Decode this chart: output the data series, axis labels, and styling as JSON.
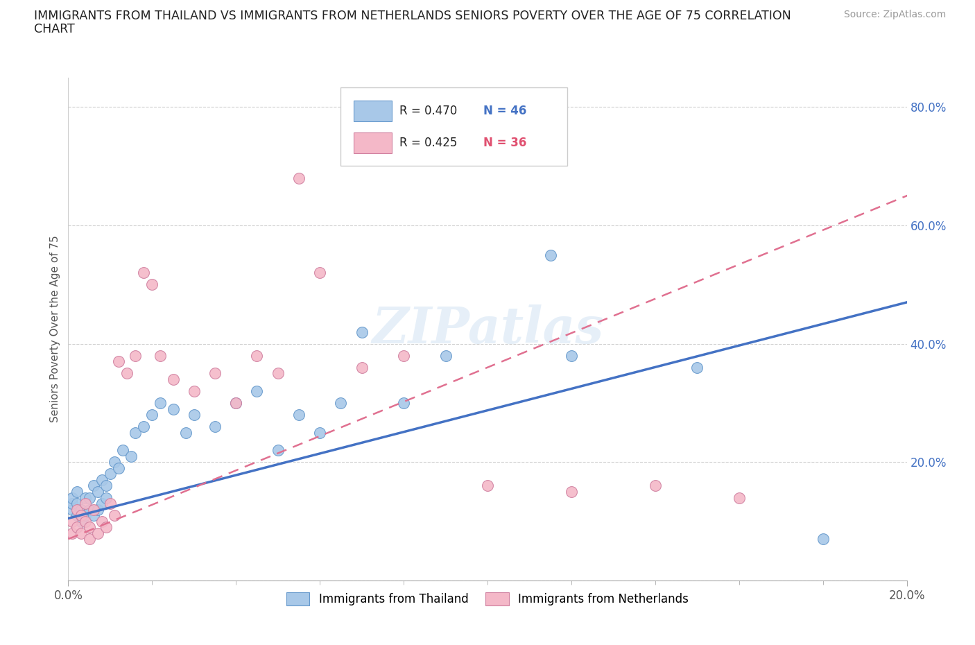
{
  "title_line1": "IMMIGRANTS FROM THAILAND VS IMMIGRANTS FROM NETHERLANDS SENIORS POVERTY OVER THE AGE OF 75 CORRELATION",
  "title_line2": "CHART",
  "source": "Source: ZipAtlas.com",
  "ylabel": "Seniors Poverty Over the Age of 75",
  "xlim": [
    0.0,
    0.2
  ],
  "ylim": [
    0.0,
    0.85
  ],
  "ytick_vals": [
    0.0,
    0.2,
    0.4,
    0.6,
    0.8
  ],
  "ytick_labels": [
    "",
    "20.0%",
    "40.0%",
    "60.0%",
    "80.0%"
  ],
  "xtick_vals": [
    0.0,
    0.2
  ],
  "xtick_labels": [
    "0.0%",
    "20.0%"
  ],
  "grid_color": "#d0d0d0",
  "background_color": "#ffffff",
  "watermark": "ZIPatlas",
  "series": [
    {
      "name": "Immigrants from Thailand",
      "scatter_color": "#a8c8e8",
      "edge_color": "#6699cc",
      "trend_color": "#4472c4",
      "trend_style": "solid",
      "R": "0.470",
      "N": "46",
      "N_color": "#4472c4",
      "trend_x0": 0.0,
      "trend_y0": 0.105,
      "trend_x1": 0.2,
      "trend_y1": 0.47
    },
    {
      "name": "Immigrants from Netherlands",
      "scatter_color": "#f4b8c8",
      "edge_color": "#d080a0",
      "trend_color": "#e07090",
      "trend_style": "dashed",
      "R": "0.425",
      "N": "36",
      "N_color": "#e05070",
      "trend_x0": 0.0,
      "trend_y0": 0.07,
      "trend_x1": 0.2,
      "trend_y1": 0.65
    }
  ],
  "thailand_x": [
    0.001,
    0.001,
    0.001,
    0.002,
    0.002,
    0.002,
    0.003,
    0.003,
    0.004,
    0.004,
    0.005,
    0.005,
    0.006,
    0.006,
    0.007,
    0.007,
    0.008,
    0.008,
    0.009,
    0.009,
    0.01,
    0.011,
    0.012,
    0.013,
    0.015,
    0.016,
    0.018,
    0.02,
    0.022,
    0.025,
    0.028,
    0.03,
    0.035,
    0.04,
    0.045,
    0.05,
    0.055,
    0.06,
    0.065,
    0.07,
    0.08,
    0.09,
    0.115,
    0.12,
    0.15,
    0.18
  ],
  "thailand_y": [
    0.12,
    0.13,
    0.14,
    0.11,
    0.13,
    0.15,
    0.1,
    0.12,
    0.11,
    0.14,
    0.12,
    0.14,
    0.11,
    0.16,
    0.12,
    0.15,
    0.13,
    0.17,
    0.14,
    0.16,
    0.18,
    0.2,
    0.19,
    0.22,
    0.21,
    0.25,
    0.26,
    0.28,
    0.3,
    0.29,
    0.25,
    0.28,
    0.26,
    0.3,
    0.32,
    0.22,
    0.28,
    0.25,
    0.3,
    0.42,
    0.3,
    0.38,
    0.55,
    0.38,
    0.36,
    0.07
  ],
  "netherlands_x": [
    0.001,
    0.001,
    0.002,
    0.002,
    0.003,
    0.003,
    0.004,
    0.004,
    0.005,
    0.005,
    0.006,
    0.007,
    0.008,
    0.009,
    0.01,
    0.011,
    0.012,
    0.014,
    0.016,
    0.018,
    0.02,
    0.022,
    0.025,
    0.03,
    0.035,
    0.04,
    0.045,
    0.05,
    0.055,
    0.06,
    0.07,
    0.08,
    0.1,
    0.12,
    0.14,
    0.16
  ],
  "netherlands_y": [
    0.1,
    0.08,
    0.09,
    0.12,
    0.08,
    0.11,
    0.1,
    0.13,
    0.09,
    0.07,
    0.12,
    0.08,
    0.1,
    0.09,
    0.13,
    0.11,
    0.37,
    0.35,
    0.38,
    0.52,
    0.5,
    0.38,
    0.34,
    0.32,
    0.35,
    0.3,
    0.38,
    0.35,
    0.68,
    0.52,
    0.36,
    0.38,
    0.16,
    0.15,
    0.16,
    0.14
  ]
}
